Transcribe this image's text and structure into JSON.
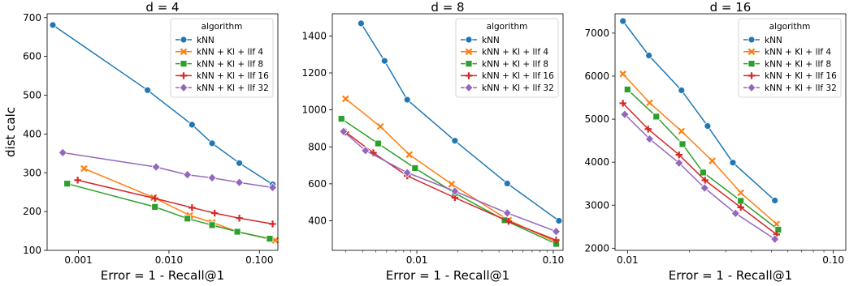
{
  "chart_data": [
    {
      "type": "line",
      "title": "d = 4",
      "xlabel": "Error = 1 - Recall@1",
      "ylabel": "dist calc",
      "xscale": "log",
      "xlim": [
        0.00045,
        0.16
      ],
      "ylim": [
        100,
        710
      ],
      "xticks": [
        {
          "v": 0.001,
          "label": "0.001"
        },
        {
          "v": 0.01,
          "label": "0.010"
        },
        {
          "v": 0.1,
          "label": "0.100"
        }
      ],
      "yticks": [
        {
          "v": 100,
          "label": "100"
        },
        {
          "v": 200,
          "label": "200"
        },
        {
          "v": 300,
          "label": "300"
        },
        {
          "v": 400,
          "label": "400"
        },
        {
          "v": 500,
          "label": "500"
        },
        {
          "v": 600,
          "label": "600"
        },
        {
          "v": 700,
          "label": "700"
        }
      ],
      "legend": {
        "title": "algorithm",
        "placement": "upper-right"
      },
      "series": [
        {
          "name": "kNN",
          "color": "#1f77b4",
          "marker": "circle",
          "points": [
            [
              0.00052,
              681
            ],
            [
              0.0058,
              513
            ],
            [
              0.018,
              424
            ],
            [
              0.03,
              376
            ],
            [
              0.06,
              325
            ],
            [
              0.14,
              270
            ]
          ]
        },
        {
          "name": "kNN + Kl + llf 4",
          "color": "#ff7f0e",
          "marker": "x",
          "points": [
            [
              0.00115,
              311
            ],
            [
              0.0068,
              236
            ],
            [
              0.017,
              190
            ],
            [
              0.03,
              172
            ],
            [
              0.057,
              148
            ],
            [
              0.15,
              126
            ]
          ]
        },
        {
          "name": "kNN + Kl + llf 8",
          "color": "#2ca02c",
          "marker": "square",
          "points": [
            [
              0.00075,
              272
            ],
            [
              0.007,
              212
            ],
            [
              0.016,
              182
            ],
            [
              0.03,
              165
            ],
            [
              0.057,
              148
            ],
            [
              0.13,
              130
            ]
          ]
        },
        {
          "name": "kNN + Kl + llf 16",
          "color": "#d62728",
          "marker": "plus",
          "points": [
            [
              0.00098,
              281
            ],
            [
              0.007,
              234
            ],
            [
              0.018,
              210
            ],
            [
              0.032,
              196
            ],
            [
              0.06,
              183
            ],
            [
              0.14,
              168
            ]
          ]
        },
        {
          "name": "kNN + Kl + llf 32",
          "color": "#9467bd",
          "marker": "diamond",
          "points": [
            [
              0.00067,
              352
            ],
            [
              0.0072,
              315
            ],
            [
              0.016,
              295
            ],
            [
              0.03,
              287
            ],
            [
              0.06,
              275
            ],
            [
              0.14,
              262
            ]
          ]
        }
      ]
    },
    {
      "type": "line",
      "title": "d = 8",
      "xlabel": "Error = 1 - Recall@1",
      "ylabel": "",
      "xscale": "log",
      "xlim": [
        0.0024,
        0.118
      ],
      "ylim": [
        240,
        1520
      ],
      "xticks": [
        {
          "v": 0.01,
          "label": "0.01"
        },
        {
          "v": 0.1,
          "label": "0.10"
        }
      ],
      "minor_xticks": [
        0.003,
        0.004,
        0.005,
        0.006,
        0.007,
        0.008,
        0.009,
        0.02,
        0.03,
        0.04,
        0.05,
        0.06,
        0.07,
        0.08,
        0.09
      ],
      "yticks": [
        {
          "v": 400,
          "label": "400"
        },
        {
          "v": 600,
          "label": "600"
        },
        {
          "v": 800,
          "label": "800"
        },
        {
          "v": 1000,
          "label": "1000"
        },
        {
          "v": 1200,
          "label": "1200"
        },
        {
          "v": 1400,
          "label": "1400"
        }
      ],
      "legend": {
        "title": "algorithm",
        "placement": "upper-right"
      },
      "series": [
        {
          "name": "kNN",
          "color": "#1f77b4",
          "marker": "circle",
          "points": [
            [
              0.0039,
              1468
            ],
            [
              0.0058,
              1265
            ],
            [
              0.0085,
              1055
            ],
            [
              0.019,
              833
            ],
            [
              0.046,
              602
            ],
            [
              0.11,
              400
            ]
          ]
        },
        {
          "name": "kNN + Kl + llf 4",
          "color": "#ff7f0e",
          "marker": "x",
          "points": [
            [
              0.003,
              1060
            ],
            [
              0.0054,
              910
            ],
            [
              0.0088,
              758
            ],
            [
              0.018,
              598
            ],
            [
              0.047,
              403
            ],
            [
              0.105,
              285
            ]
          ]
        },
        {
          "name": "kNN + Kl + llf 8",
          "color": "#2ca02c",
          "marker": "square",
          "points": [
            [
              0.0028,
              952
            ],
            [
              0.0052,
              818
            ],
            [
              0.0097,
              685
            ],
            [
              0.019,
              550
            ],
            [
              0.044,
              403
            ],
            [
              0.105,
              275
            ]
          ]
        },
        {
          "name": "kNN + Kl + llf 16",
          "color": "#d62728",
          "marker": "plus",
          "points": [
            [
              0.003,
              880
            ],
            [
              0.0048,
              768
            ],
            [
              0.0085,
              643
            ],
            [
              0.019,
              525
            ],
            [
              0.047,
              397
            ],
            [
              0.105,
              295
            ]
          ]
        },
        {
          "name": "kNN + Kl + llf 32",
          "color": "#9467bd",
          "marker": "diamond",
          "points": [
            [
              0.0029,
              883
            ],
            [
              0.0042,
              780
            ],
            [
              0.0085,
              660
            ],
            [
              0.019,
              560
            ],
            [
              0.046,
              442
            ],
            [
              0.105,
              342
            ]
          ]
        }
      ]
    },
    {
      "type": "line",
      "title": "d = 16",
      "xlabel": "Error = 1 - Recall@1",
      "ylabel": "",
      "xscale": "log",
      "xlim": [
        0.0087,
        0.115
      ],
      "ylim": [
        1950,
        7450
      ],
      "xticks": [
        {
          "v": 0.01,
          "label": "0.01"
        },
        {
          "v": 0.1,
          "label": "0.10"
        }
      ],
      "minor_xticks": [
        0.02,
        0.03,
        0.04,
        0.05,
        0.06,
        0.07,
        0.08,
        0.09
      ],
      "yticks": [
        {
          "v": 2000,
          "label": "2000"
        },
        {
          "v": 3000,
          "label": "3000"
        },
        {
          "v": 4000,
          "label": "4000"
        },
        {
          "v": 5000,
          "label": "5000"
        },
        {
          "v": 6000,
          "label": "6000"
        },
        {
          "v": 7000,
          "label": "7000"
        }
      ],
      "legend": {
        "title": "algorithm",
        "placement": "upper-right"
      },
      "series": [
        {
          "name": "kNN",
          "color": "#1f77b4",
          "marker": "circle",
          "points": [
            [
              0.0095,
              7280
            ],
            [
              0.0127,
              6480
            ],
            [
              0.0183,
              5670
            ],
            [
              0.0245,
              4840
            ],
            [
              0.0325,
              3990
            ],
            [
              0.052,
              3110
            ]
          ]
        },
        {
          "name": "kNN + Kl + llf 4",
          "color": "#ff7f0e",
          "marker": "x",
          "points": [
            [
              0.0095,
              6050
            ],
            [
              0.0128,
              5380
            ],
            [
              0.0183,
              4720
            ],
            [
              0.0258,
              4030
            ],
            [
              0.0355,
              3290
            ],
            [
              0.053,
              2560
            ]
          ]
        },
        {
          "name": "kNN + Kl + llf 8",
          "color": "#2ca02c",
          "marker": "square",
          "points": [
            [
              0.01,
              5690
            ],
            [
              0.0138,
              5060
            ],
            [
              0.0185,
              4420
            ],
            [
              0.0233,
              3760
            ],
            [
              0.0355,
              3100
            ],
            [
              0.054,
              2430
            ]
          ]
        },
        {
          "name": "kNN + Kl + llf 16",
          "color": "#d62728",
          "marker": "plus",
          "points": [
            [
              0.0095,
              5370
            ],
            [
              0.0126,
              4770
            ],
            [
              0.0178,
              4170
            ],
            [
              0.0238,
              3580
            ],
            [
              0.0355,
              2950
            ],
            [
              0.053,
              2320
            ]
          ]
        },
        {
          "name": "kNN + Kl + llf 32",
          "color": "#9467bd",
          "marker": "diamond",
          "points": [
            [
              0.0097,
              5110
            ],
            [
              0.0128,
              4540
            ],
            [
              0.0178,
              3980
            ],
            [
              0.0237,
              3400
            ],
            [
              0.0335,
              2810
            ],
            [
              0.052,
              2210
            ]
          ]
        }
      ]
    }
  ]
}
